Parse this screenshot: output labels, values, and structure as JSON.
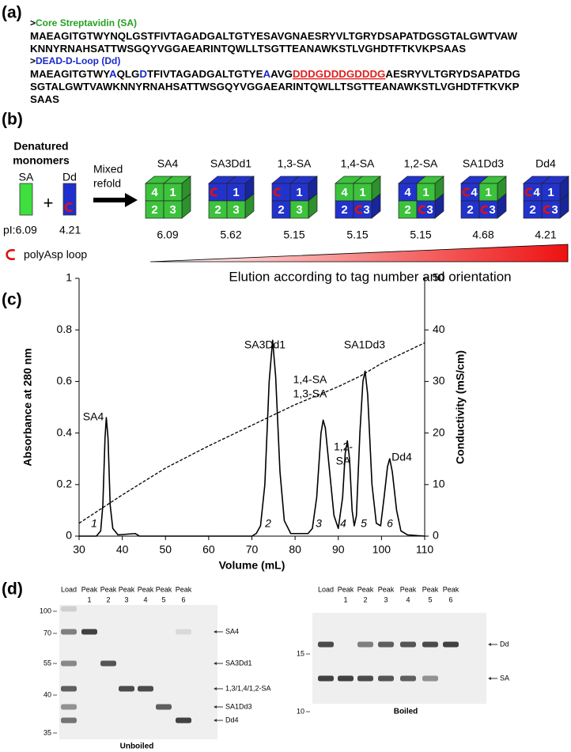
{
  "panel_a": {
    "label": "(a)",
    "sequences": [
      {
        "header": [
          {
            "text": ">"
          },
          {
            "text": "Core Streptavidin (SA)",
            "color": "#22a022"
          }
        ],
        "lines": [
          [
            {
              "text": "MAEAGITGTWYNQLGSTFIVTAGADGALTGTYESAVGNAESRYVLTGRYDSAPATDGSGTALGWTVAW"
            }
          ],
          [
            {
              "text": "KNNYRNAHSATTWSGQYVGGAEARINTQWLLTSGTTEANAWKSTLVGHDTFTKVKPSAAS"
            }
          ]
        ]
      },
      {
        "header": [
          {
            "text": ">"
          },
          {
            "text": "DEAD-D-Loop (Dd)",
            "color": "#1a2acc"
          }
        ],
        "lines": [
          [
            {
              "text": "MAEAGITGTWY"
            },
            {
              "text": "A",
              "color": "#1a2acc"
            },
            {
              "text": "QLG"
            },
            {
              "text": "D",
              "color": "#1a2acc"
            },
            {
              "text": "TFIVTAGADGALTGTYE"
            },
            {
              "text": "A",
              "color": "#1a2acc"
            },
            {
              "text": "AVG"
            },
            {
              "text": "DDDGDDDGDDDG",
              "color": "#e02020",
              "underline": true
            },
            {
              "text": "AESRYVLTGRYDSAPATDG"
            }
          ],
          [
            {
              "text": "SGTALGWTVAWKNNYRNAHSATTWSGQYVGGAEARINTQWLLTSGTTEANAWKSTLVGHDTFTKVKP"
            }
          ],
          [
            {
              "text": "SAAS"
            }
          ]
        ]
      }
    ]
  },
  "panel_b": {
    "label": "(b)",
    "monomer_title": [
      "Denatured",
      "monomers"
    ],
    "monomers": [
      {
        "name": "SA",
        "pI": "pI:6.09",
        "color": "#3ee03e"
      },
      {
        "name": "Dd",
        "pI": "4.21",
        "color": "#1f2fcf"
      }
    ],
    "plus": "+",
    "mix_label": [
      "Mixed",
      "refold"
    ],
    "tetramers": [
      {
        "name": "SA4",
        "pI": 6.09,
        "subunits": [
          {
            "label": "4",
            "color": "#3cc23c"
          },
          {
            "label": "1",
            "color": "#3cc23c"
          },
          {
            "label": "2",
            "color": "#3cc23c"
          },
          {
            "label": "3",
            "color": "#3cc23c"
          }
        ]
      },
      {
        "name": "SA3Dd1",
        "pI": 5.62,
        "subunits": [
          {
            "color": "#2233cc",
            "loop": true
          },
          {
            "label": "1",
            "color": "#2233cc"
          },
          {
            "label": "2",
            "color": "#3cc23c"
          },
          {
            "label": "3",
            "color": "#3cc23c"
          }
        ]
      },
      {
        "name": "1,3-SA",
        "pI": 5.15,
        "subunits": [
          {
            "color": "#2233cc",
            "loop": true
          },
          {
            "label": "1",
            "color": "#2233cc"
          },
          {
            "label": "2",
            "color": "#2233cc"
          },
          {
            "label": "3",
            "color": "#3cc23c"
          }
        ]
      },
      {
        "name": "1,4-SA",
        "pI": 5.15,
        "subunits": [
          {
            "label": "4",
            "color": "#3cc23c"
          },
          {
            "label": "1",
            "color": "#3cc23c"
          },
          {
            "label": "2",
            "color": "#2233cc"
          },
          {
            "label": "3",
            "color": "#2233cc",
            "loop": true
          }
        ]
      },
      {
        "name": "1,2-SA",
        "pI": 5.15,
        "subunits": [
          {
            "label": "4",
            "color": "#2233cc"
          },
          {
            "label": "1",
            "color": "#3cc23c"
          },
          {
            "label": "2",
            "color": "#3cc23c"
          },
          {
            "label": "3",
            "color": "#2233cc",
            "loop": true
          }
        ]
      },
      {
        "name": "SA1Dd3",
        "pI": 4.68,
        "subunits": [
          {
            "label": "4",
            "color": "#2233cc",
            "loop": true
          },
          {
            "label": "1",
            "color": "#3cc23c"
          },
          {
            "label": "2",
            "color": "#2233cc"
          },
          {
            "label": "3",
            "color": "#2233cc",
            "loop": true
          }
        ]
      },
      {
        "name": "Dd4",
        "pI": 4.21,
        "subunits": [
          {
            "label": "4",
            "color": "#2233cc",
            "loop": true
          },
          {
            "label": "1",
            "color": "#2233cc"
          },
          {
            "label": "2",
            "color": "#2233cc"
          },
          {
            "label": "3",
            "color": "#2233cc",
            "loop": true
          }
        ]
      }
    ],
    "loop_legend": "polyAsp loop",
    "gradient_label": "Elution according to tag number and orientation"
  },
  "panel_c": {
    "label": "(c)"
  },
  "chart_data": {
    "type": "line",
    "xlabel": "Volume (mL)",
    "ylabel": "Absorbance at 280 nm",
    "y2label": "Conductivity (mS/cm)",
    "xlim": [
      30,
      110
    ],
    "xticks": [
      30,
      40,
      50,
      60,
      70,
      80,
      90,
      100,
      110
    ],
    "ylim": [
      0,
      1
    ],
    "yticks": [
      0,
      0.2,
      0.4,
      0.6,
      0.8,
      1
    ],
    "y2lim": [
      0,
      50
    ],
    "y2ticks": [
      0,
      10,
      20,
      30,
      40,
      50
    ],
    "series": [
      {
        "color": "#000000",
        "x": [
          30,
          34,
          35,
          35.5,
          36,
          36.3,
          36.7,
          37.2,
          37.8,
          39,
          43,
          44,
          70,
          71,
          72,
          73,
          74,
          74.8,
          75.5,
          76.5,
          77.5,
          79,
          83,
          84,
          85,
          86,
          86.5,
          87,
          88,
          89,
          90,
          91,
          91.6,
          92.1,
          92.6,
          93.2,
          93.7,
          94.2,
          95,
          95.7,
          96.2,
          96.8,
          97.8,
          98.8,
          99.8,
          100.6,
          101.4,
          101.9,
          102.5,
          103.5,
          104.5,
          106,
          110
        ],
        "values": [
          0,
          0,
          0.02,
          0.12,
          0.38,
          0.46,
          0.38,
          0.12,
          0.03,
          0.005,
          0.01,
          0,
          0,
          0.01,
          0.04,
          0.2,
          0.6,
          0.76,
          0.62,
          0.25,
          0.06,
          0.01,
          0.01,
          0.03,
          0.15,
          0.4,
          0.45,
          0.42,
          0.25,
          0.08,
          0.03,
          0.15,
          0.32,
          0.37,
          0.3,
          0.1,
          0.04,
          0.08,
          0.4,
          0.6,
          0.64,
          0.55,
          0.2,
          0.05,
          0.04,
          0.15,
          0.27,
          0.3,
          0.25,
          0.1,
          0.02,
          0.005,
          0
        ]
      },
      {
        "color": "#000000",
        "dash": true,
        "axis": "y2",
        "x": [
          30,
          40,
          50,
          60,
          70,
          80,
          90,
          95,
          100,
          110
        ],
        "values": [
          2.5,
          8,
          13.2,
          17.5,
          21.5,
          25.5,
          29,
          31,
          33.5,
          37.5
        ]
      }
    ],
    "peak_labels": [
      "SA4",
      "SA3Dd1",
      "1,4-SA",
      "1,3-SA",
      "1,2-",
      "SA",
      "SA1Dd3",
      "Dd4"
    ],
    "peak_numbers": [
      1,
      2,
      3,
      4,
      5,
      6
    ]
  },
  "panel_d": {
    "label": "(d)",
    "unboiled": {
      "lanes": [
        [
          "Load"
        ],
        [
          "Peak",
          "1"
        ],
        [
          "Peak",
          "2"
        ],
        [
          "Peak",
          "3"
        ],
        [
          "Peak",
          "4"
        ],
        [
          "Peak",
          "5"
        ],
        [
          "Peak",
          "6"
        ]
      ],
      "markers": [
        100,
        70,
        55,
        40,
        35
      ],
      "bands": [
        "SA4",
        "SA3Dd1",
        "1,3/1,4/1,2-SA",
        "SA1Dd3",
        "Dd4"
      ],
      "caption": "Unboiled"
    },
    "boiled": {
      "lanes": [
        [
          "Load"
        ],
        [
          "Peak",
          "1"
        ],
        [
          "Peak",
          "2"
        ],
        [
          "Peak",
          "3"
        ],
        [
          "Peak",
          "4"
        ],
        [
          "Peak",
          "5"
        ],
        [
          "Peak",
          "6"
        ]
      ],
      "markers": [
        15,
        10
      ],
      "bands": [
        "Dd",
        "SA"
      ],
      "caption": "Boiled"
    }
  }
}
